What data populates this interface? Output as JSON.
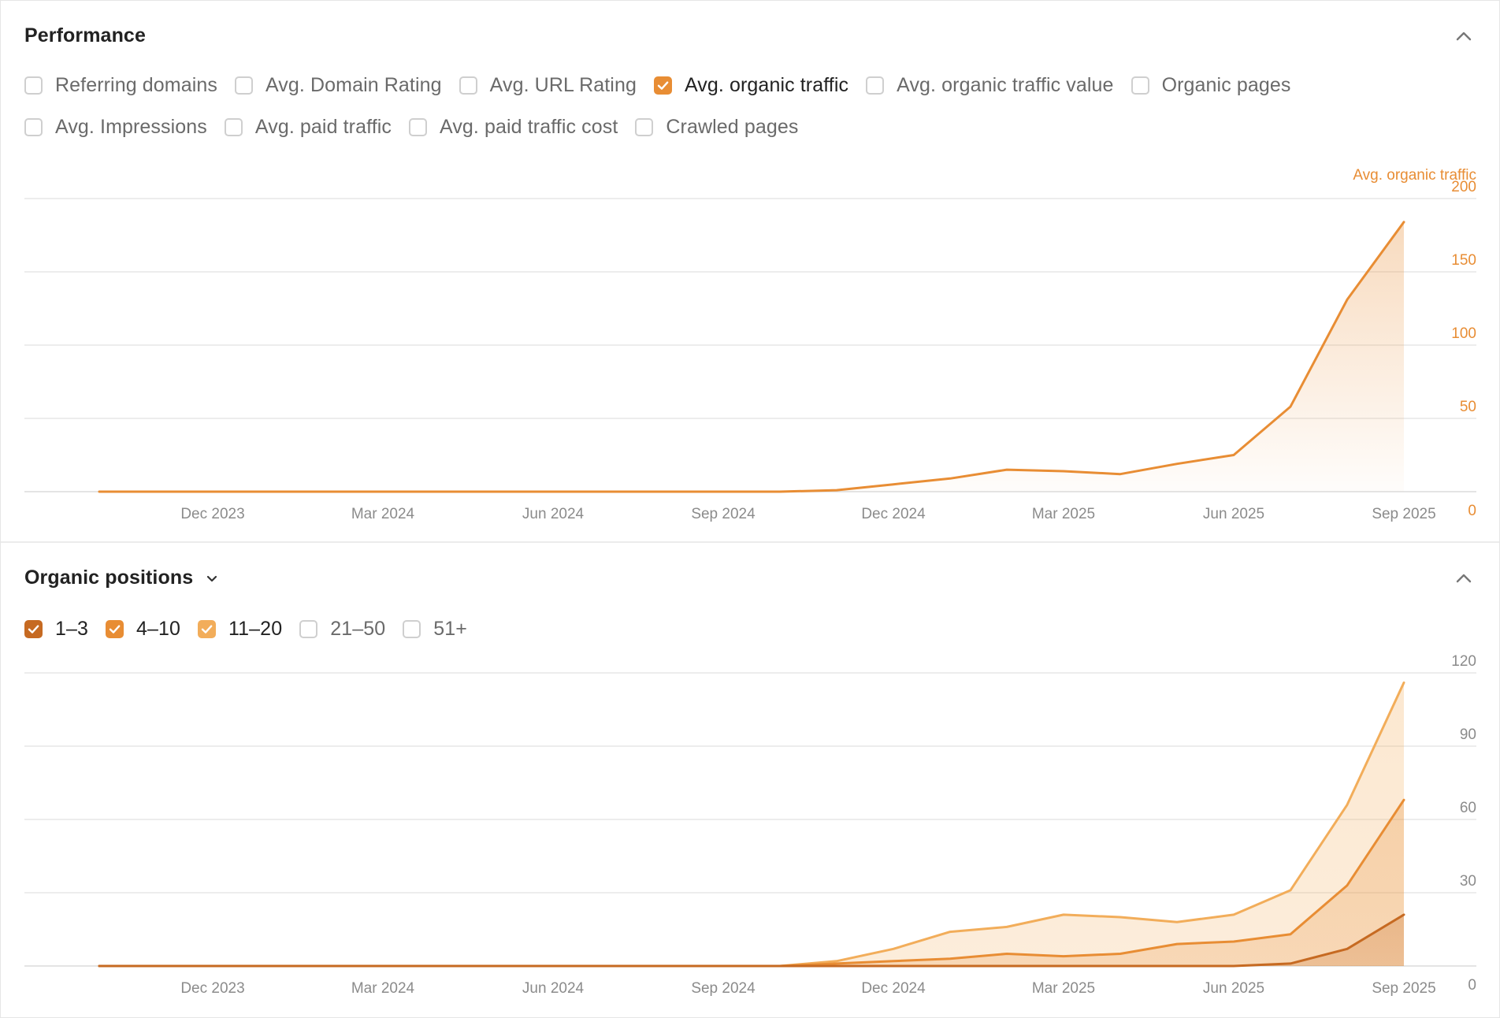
{
  "performance": {
    "title": "Performance",
    "metrics_row1": [
      {
        "label": "Referring domains",
        "checked": false
      },
      {
        "label": "Avg. Domain Rating",
        "checked": false
      },
      {
        "label": "Avg. URL Rating",
        "checked": false
      },
      {
        "label": "Avg. organic traffic",
        "checked": true
      },
      {
        "label": "Avg. organic traffic value",
        "checked": false
      },
      {
        "label": "Organic pages",
        "checked": false
      }
    ],
    "metrics_row2": [
      {
        "label": "Avg. Impressions",
        "checked": false
      },
      {
        "label": "Avg. paid traffic",
        "checked": false
      },
      {
        "label": "Avg. paid traffic cost",
        "checked": false
      },
      {
        "label": "Crawled pages",
        "checked": false
      }
    ]
  },
  "organic_positions": {
    "title": "Organic positions",
    "filters": [
      {
        "label": "1–3",
        "checked": true,
        "color": "#c66a22"
      },
      {
        "label": "4–10",
        "checked": true,
        "color": "#e88d34"
      },
      {
        "label": "11–20",
        "checked": true,
        "color": "#f2ad5a"
      },
      {
        "label": "21–50",
        "checked": false
      },
      {
        "label": "51+",
        "checked": false
      }
    ]
  },
  "chart_data": [
    {
      "type": "area",
      "title": "",
      "xlabel": "",
      "ylabel": "Avg. organic traffic",
      "x_ticks": [
        "Dec 2023",
        "Mar 2024",
        "Jun 2024",
        "Sep 2024",
        "Dec 2024",
        "Mar 2025",
        "Jun 2025",
        "Sep 2025"
      ],
      "y_ticks": [
        0,
        50,
        100,
        150,
        200
      ],
      "ylim": [
        0,
        200
      ],
      "color": "#e88d34",
      "series": [
        {
          "name": "Avg. organic traffic",
          "x": [
            "Oct 2023",
            "Nov 2023",
            "Dec 2023",
            "Jan 2024",
            "Feb 2024",
            "Mar 2024",
            "Apr 2024",
            "May 2024",
            "Jun 2024",
            "Jul 2024",
            "Aug 2024",
            "Sep 2024",
            "Oct 2024",
            "Nov 2024",
            "Dec 2024",
            "Jan 2025",
            "Feb 2025",
            "Mar 2025",
            "Apr 2025",
            "May 2025",
            "Jun 2025",
            "Jul 2025",
            "Aug 2025",
            "Sep 2025"
          ],
          "values": [
            0,
            0,
            0,
            0,
            0,
            0,
            0,
            0,
            0,
            0,
            0,
            0,
            0,
            1,
            5,
            9,
            15,
            14,
            12,
            19,
            25,
            58,
            131,
            184
          ]
        }
      ]
    },
    {
      "type": "area",
      "title": "",
      "xlabel": "",
      "ylabel": "",
      "x_ticks": [
        "Dec 2023",
        "Mar 2024",
        "Jun 2024",
        "Sep 2024",
        "Dec 2024",
        "Mar 2025",
        "Jun 2025",
        "Sep 2025"
      ],
      "y_ticks": [
        0,
        30,
        60,
        90,
        120
      ],
      "ylim": [
        0,
        120
      ],
      "stacked": false,
      "series": [
        {
          "name": "11–20",
          "color": "#f2ad5a",
          "values": [
            0,
            0,
            0,
            0,
            0,
            0,
            0,
            0,
            0,
            0,
            0,
            0,
            0,
            2,
            7,
            14,
            16,
            21,
            20,
            18,
            21,
            31,
            66,
            116
          ]
        },
        {
          "name": "4–10",
          "color": "#e88d34",
          "values": [
            0,
            0,
            0,
            0,
            0,
            0,
            0,
            0,
            0,
            0,
            0,
            0,
            0,
            1,
            2,
            3,
            5,
            4,
            5,
            9,
            10,
            13,
            33,
            68
          ]
        },
        {
          "name": "1–3",
          "color": "#c66a22",
          "values": [
            0,
            0,
            0,
            0,
            0,
            0,
            0,
            0,
            0,
            0,
            0,
            0,
            0,
            0,
            0,
            0,
            0,
            0,
            0,
            0,
            0,
            1,
            7,
            21
          ]
        }
      ]
    }
  ]
}
